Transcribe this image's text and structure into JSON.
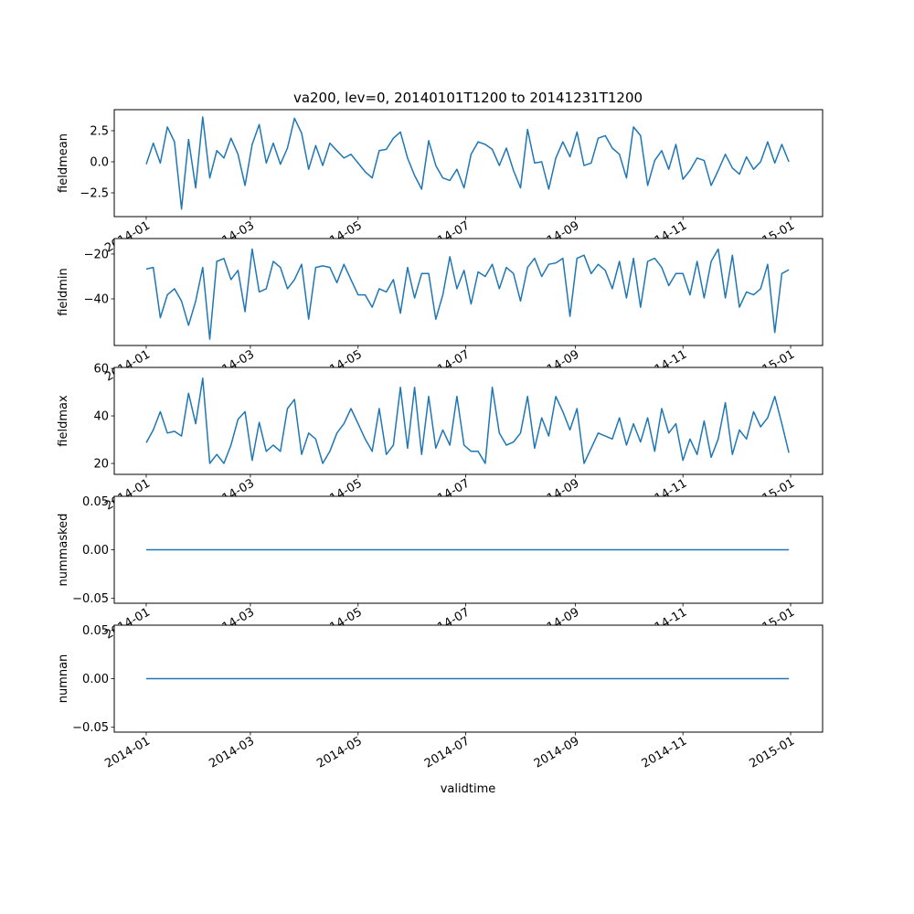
{
  "chart_data": {
    "type": "line",
    "title": "va200, lev=0, 20140101T1200 to 20141231T1200",
    "xlabel": "validtime",
    "line_color": "#1f77b4",
    "x_unit": "days since 2014-01-01",
    "x": [
      0,
      4,
      8,
      12,
      16,
      20,
      24,
      28,
      32,
      36,
      40,
      44,
      48,
      52,
      56,
      60,
      64,
      68,
      72,
      76,
      80,
      84,
      88,
      92,
      96,
      100,
      104,
      108,
      112,
      116,
      120,
      124,
      128,
      132,
      136,
      140,
      144,
      148,
      152,
      156,
      160,
      164,
      168,
      172,
      176,
      180,
      184,
      188,
      192,
      196,
      200,
      204,
      208,
      212,
      216,
      220,
      224,
      228,
      232,
      236,
      240,
      244,
      248,
      252,
      256,
      260,
      264,
      268,
      272,
      276,
      280,
      284,
      288,
      292,
      296,
      300,
      304,
      308,
      312,
      316,
      320,
      324,
      328,
      332,
      336,
      340,
      344,
      348,
      352,
      356,
      360,
      364
    ],
    "xlim": [
      -18.1,
      383.1
    ],
    "xticks": [
      {
        "day": 0,
        "label": "2014-01"
      },
      {
        "day": 59,
        "label": "2014-03"
      },
      {
        "day": 120,
        "label": "2014-05"
      },
      {
        "day": 181,
        "label": "2014-07"
      },
      {
        "day": 243,
        "label": "2014-09"
      },
      {
        "day": 304,
        "label": "2014-11"
      },
      {
        "day": 365,
        "label": "2015-01"
      }
    ],
    "subplots": [
      {
        "ylabel": "fieldmean",
        "ylim": [
          -4.41,
          4.19
        ],
        "yticks": [
          {
            "v": -2.5,
            "label": "−2.5"
          },
          {
            "v": 0,
            "label": "0.0"
          },
          {
            "v": 2.5,
            "label": "2.5"
          }
        ],
        "values": [
          -0.2,
          1.5,
          -0.1,
          2.8,
          1.6,
          -3.8,
          1.8,
          -2.1,
          3.6,
          -1.3,
          0.9,
          0.3,
          1.9,
          0.6,
          -1.9,
          1.4,
          3.0,
          -0.1,
          1.5,
          -0.2,
          1.1,
          3.5,
          2.3,
          -0.6,
          1.3,
          -0.3,
          1.5,
          0.9,
          0.3,
          0.6,
          -0.1,
          -0.8,
          -1.3,
          0.9,
          1.0,
          1.9,
          2.4,
          0.3,
          -1.1,
          -2.2,
          1.7,
          -0.3,
          -1.3,
          -1.5,
          -0.6,
          -2.1,
          0.6,
          1.6,
          1.4,
          1.0,
          -0.3,
          1.1,
          -0.7,
          -2.1,
          2.6,
          -0.1,
          0.0,
          -2.2,
          0.3,
          1.6,
          0.4,
          2.4,
          -0.3,
          -0.1,
          1.9,
          2.1,
          1.1,
          0.6,
          -1.3,
          2.8,
          2.1,
          -1.9,
          0.1,
          0.9,
          -0.6,
          1.4,
          -1.4,
          -0.7,
          0.3,
          0.1,
          -1.9,
          -0.7,
          0.6,
          -0.5,
          -1.0,
          0.4,
          -0.6,
          0.0,
          1.6,
          -0.1,
          1.4,
          0.0
        ]
      },
      {
        "ylabel": "fieldmin",
        "ylim": [
          -60.8,
          -13.1
        ],
        "yticks": [
          {
            "v": -40,
            "label": "−40"
          },
          {
            "v": -20,
            "label": "−20"
          }
        ],
        "values": [
          -26.7,
          -26,
          -48.4,
          -38.2,
          -35.5,
          -41,
          -51.8,
          -41,
          -26,
          -58,
          -23.3,
          -22,
          -31.4,
          -27.3,
          -45.7,
          -17.8,
          -36.9,
          -35.5,
          -23.3,
          -26,
          -35.5,
          -31.4,
          -24.6,
          -49,
          -26,
          -25.3,
          -26,
          -32.8,
          -24.6,
          -31.4,
          -38.2,
          -38.2,
          -43.7,
          -35.5,
          -36.9,
          -31.4,
          -46.4,
          -26,
          -39.6,
          -28.7,
          -28.7,
          -49.1,
          -38.2,
          -21.2,
          -35.5,
          -27.3,
          -42.3,
          -28,
          -30,
          -24.6,
          -35.5,
          -26,
          -28.7,
          -41,
          -26,
          -21.9,
          -30,
          -24.6,
          -24,
          -21.9,
          -47.8,
          -21.9,
          -20.5,
          -28.7,
          -24.6,
          -27.3,
          -35.5,
          -23.3,
          -39.6,
          -21.9,
          -43.7,
          -23.3,
          -21.9,
          -26,
          -34.1,
          -28.7,
          -28.7,
          -38.2,
          -23.3,
          -39.6,
          -23.3,
          -17.8,
          -39.6,
          -20.5,
          -43.7,
          -36.9,
          -38.2,
          -35.5,
          -24.6,
          -55,
          -28.7,
          -27
        ]
      },
      {
        "ylabel": "fieldmax",
        "ylim": [
          15.4,
          60.4
        ],
        "yticks": [
          {
            "v": 20,
            "label": "20"
          },
          {
            "v": 40,
            "label": "40"
          },
          {
            "v": 60,
            "label": "60"
          }
        ],
        "values": [
          28.7,
          34.1,
          41.8,
          32.8,
          33.5,
          31.5,
          49.5,
          36.7,
          55.9,
          20,
          23.8,
          20,
          27.7,
          38.6,
          41.8,
          21.3,
          37.3,
          25.1,
          27.7,
          25.1,
          43.1,
          46.9,
          23.8,
          32.8,
          30.3,
          20,
          25.1,
          32.8,
          36.7,
          43.1,
          36.7,
          30.3,
          25.1,
          43.1,
          23.8,
          27.7,
          52,
          26.4,
          52,
          23.8,
          48.2,
          26.4,
          34.1,
          27.7,
          48.2,
          27.7,
          25.1,
          25.1,
          20,
          52,
          32.8,
          27.7,
          29,
          32.8,
          48.2,
          26.4,
          39.2,
          31.5,
          48.2,
          41.8,
          34.1,
          43.1,
          20,
          26.4,
          32.8,
          31.5,
          30.3,
          39.2,
          27.7,
          36.7,
          29,
          39.2,
          25.1,
          43.1,
          32.8,
          36.7,
          21.3,
          30.3,
          23.8,
          37.9,
          22.6,
          30.3,
          45.6,
          23.8,
          34.1,
          30.3,
          41.8,
          35.4,
          39.2,
          48.2,
          36.7,
          24.5
        ]
      },
      {
        "ylabel": "nummasked",
        "ylim": [
          -0.055,
          0.055
        ],
        "yticks": [
          {
            "v": -0.05,
            "label": "−0.05"
          },
          {
            "v": 0,
            "label": "0.00"
          },
          {
            "v": 0.05,
            "label": "0.05"
          }
        ],
        "constant": 0
      },
      {
        "ylabel": "numnan",
        "ylim": [
          -0.055,
          0.055
        ],
        "yticks": [
          {
            "v": -0.05,
            "label": "−0.05"
          },
          {
            "v": 0,
            "label": "0.00"
          },
          {
            "v": 0.05,
            "label": "0.05"
          }
        ],
        "constant": 0
      }
    ]
  }
}
